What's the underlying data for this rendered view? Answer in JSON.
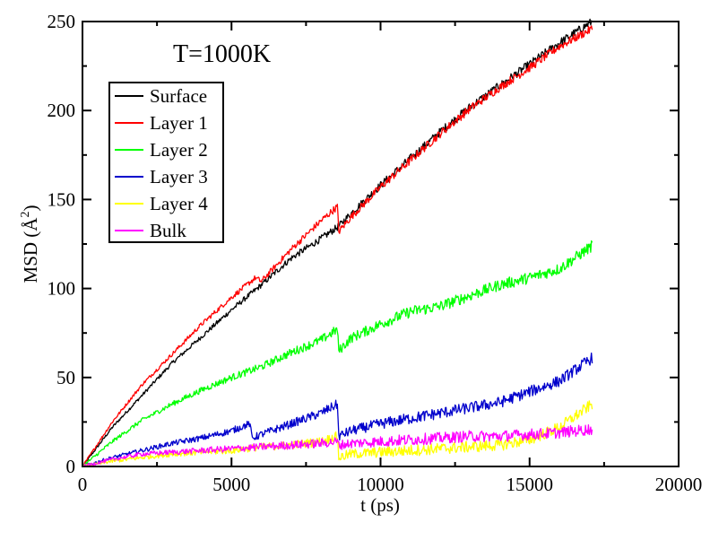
{
  "chart_data": {
    "type": "line",
    "annotation": "T=1000K",
    "xlabel": "t (ps)",
    "ylabel_main": "MSD (Å",
    "ylabel_exp": "2",
    "ylabel_close": ")",
    "xlim": [
      0,
      20000
    ],
    "ylim": [
      0,
      250
    ],
    "xticks": [
      0,
      5000,
      10000,
      15000,
      20000
    ],
    "yticks": [
      0,
      50,
      100,
      150,
      200,
      250
    ],
    "xtick_labels": [
      "0",
      "5000",
      "10000",
      "15000",
      "20000"
    ],
    "ytick_labels": [
      "0",
      "50",
      "100",
      "150",
      "200",
      "250"
    ],
    "grid": false,
    "legend_position": "top-left",
    "series": [
      {
        "name": "Surface",
        "color": "#000000",
        "x": [
          0,
          1000,
          2000,
          3000,
          4000,
          5000,
          6000,
          7000,
          8000,
          8600,
          9000,
          10000,
          11000,
          12000,
          13000,
          14000,
          15000,
          16000,
          17100
        ],
        "y": [
          0,
          22,
          40,
          58,
          73,
          88,
          102,
          117,
          128,
          135,
          142,
          158,
          173,
          188,
          202,
          214,
          226,
          238,
          250
        ]
      },
      {
        "name": "Layer 1",
        "color": "#ff0000",
        "x": [
          0,
          1000,
          2000,
          3000,
          4000,
          5000,
          5800,
          6000,
          7000,
          8000,
          8550,
          8600,
          9000,
          10000,
          11000,
          12000,
          13000,
          14000,
          15000,
          16000,
          17100
        ],
        "y": [
          0,
          25,
          46,
          63,
          80,
          95,
          106,
          104,
          122,
          138,
          146,
          132,
          140,
          157,
          172,
          187,
          201,
          213,
          224,
          236,
          246
        ]
      },
      {
        "name": "Layer 2",
        "color": "#00ff00",
        "x": [
          0,
          1000,
          2000,
          3000,
          4000,
          5000,
          6000,
          7000,
          8000,
          8550,
          8600,
          9000,
          10000,
          11000,
          12000,
          13000,
          14000,
          15000,
          16000,
          17100
        ],
        "y": [
          0,
          14,
          26,
          35,
          43,
          50,
          56,
          64,
          71,
          77,
          65,
          72,
          80,
          87,
          90,
          96,
          102,
          106,
          111,
          124
        ]
      },
      {
        "name": "Layer 3",
        "color": "#0000cc",
        "x": [
          0,
          1000,
          2000,
          3000,
          4000,
          5000,
          5600,
          5700,
          6000,
          7000,
          8000,
          8550,
          8600,
          9000,
          10000,
          11000,
          12000,
          13000,
          14000,
          15000,
          16000,
          17100
        ],
        "y": [
          0,
          5,
          9,
          13,
          16,
          20,
          24,
          16,
          18,
          24,
          30,
          35,
          17,
          20,
          24,
          27,
          30,
          33,
          36,
          42,
          48,
          61
        ]
      },
      {
        "name": "Layer 4",
        "color": "#ffff00",
        "x": [
          0,
          1000,
          2000,
          3000,
          4000,
          5000,
          6000,
          7000,
          8000,
          8550,
          8600,
          9000,
          10000,
          11000,
          12000,
          13000,
          14000,
          15000,
          16000,
          17100
        ],
        "y": [
          0,
          3,
          5,
          7,
          8,
          9,
          11,
          12,
          14,
          17,
          5,
          7,
          8,
          9,
          10,
          11,
          12,
          15,
          22,
          35
        ]
      },
      {
        "name": "Bulk",
        "color": "#ff00ff",
        "x": [
          0,
          1000,
          2000,
          3000,
          4000,
          5000,
          6000,
          7000,
          8000,
          8550,
          8600,
          9000,
          10000,
          11000,
          12000,
          13000,
          14000,
          15000,
          16000,
          17100
        ],
        "y": [
          0,
          4,
          7,
          8,
          9,
          10,
          11,
          12,
          13,
          14,
          12,
          13,
          14,
          15,
          16,
          17,
          17,
          18,
          19,
          21
        ]
      }
    ]
  }
}
